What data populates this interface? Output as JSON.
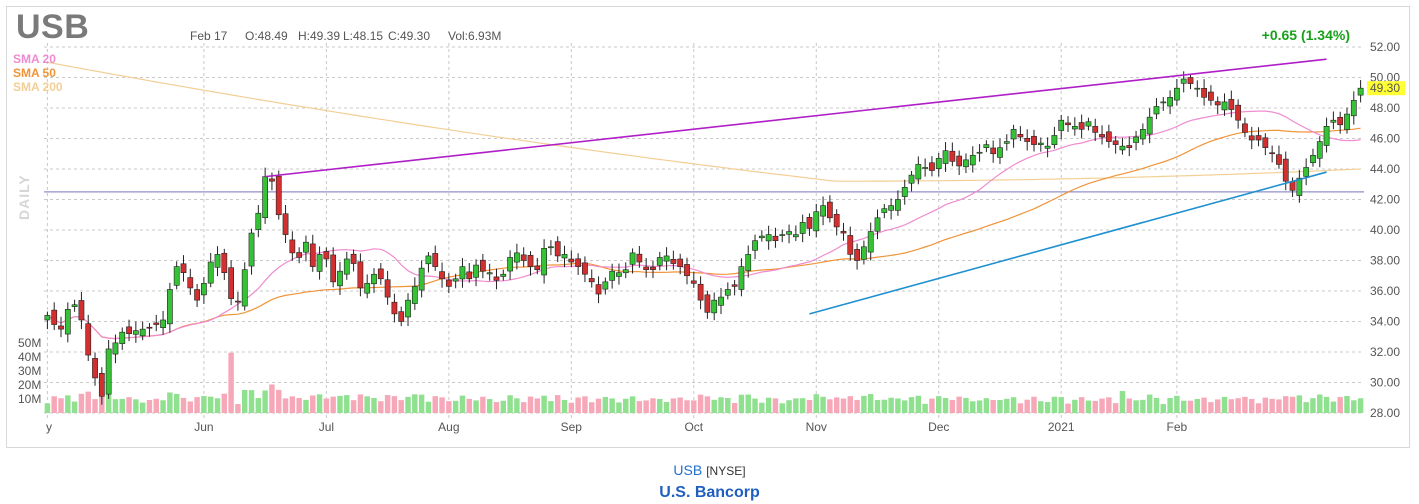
{
  "header": {
    "ticker": "USB",
    "date": "Feb 17",
    "open": "O:48.49",
    "high": "H:49.39",
    "low": "L:48.15",
    "close": "C:49.30",
    "volume": "Vol:6.93M",
    "change": "+0.65 (1.34%)",
    "last_price": "49.30"
  },
  "legend": [
    {
      "label": "SMA 20",
      "color": "#f08bd0"
    },
    {
      "label": "SMA 50",
      "color": "#f0943a"
    },
    {
      "label": "SMA 200",
      "color": "#f2cf95"
    }
  ],
  "side_label": "DAILY",
  "colors": {
    "up": "#36c236",
    "down": "#d23030",
    "vol_up": "#8fe08f",
    "vol_down": "#f7a8b8",
    "resistance": "#b01ec8",
    "support": "#1e90d0",
    "hline": "#9090c8",
    "price_tag": "#ffff33"
  },
  "chart_data": {
    "type": "candlestick",
    "ylim": [
      28,
      52
    ],
    "y_ticks": [
      "52.00",
      "50.00",
      "48.00",
      "46.00",
      "44.00",
      "42.00",
      "40.00",
      "38.00",
      "36.00",
      "34.00",
      "32.00",
      "30.00",
      "28.00"
    ],
    "y_tick_values": [
      52,
      50,
      48,
      46,
      44,
      42,
      40,
      38,
      36,
      34,
      32,
      30,
      28
    ],
    "x_ticks": [
      "y",
      "Jun",
      "Jul",
      "Aug",
      "Sep",
      "Oct",
      "Nov",
      "Dec",
      "2021",
      "Feb"
    ],
    "x_tick_index": [
      0,
      23,
      41,
      59,
      77,
      95,
      113,
      131,
      149,
      166
    ],
    "volume_ticks": [
      "50M",
      "40M",
      "30M",
      "20M",
      "10M"
    ],
    "volume_tick_values": [
      50,
      40,
      30,
      20,
      10
    ],
    "closes": [
      34.4,
      33.8,
      33.5,
      34.8,
      35.1,
      34.1,
      31.8,
      30.3,
      29.1,
      32.2,
      32.6,
      33.3,
      33.2,
      33.4,
      33.5,
      33.6,
      33.8,
      34.1,
      36.1,
      37.6,
      37.2,
      36.2,
      35.4,
      36.5,
      37.9,
      38.4,
      37.2,
      35.5,
      35.3,
      37.4,
      39.8,
      41.1,
      43.5,
      43.2,
      41.0,
      39.7,
      38.5,
      38.2,
      39.2,
      37.6,
      38.4,
      38.1,
      36.6,
      37.3,
      38.1,
      37.8,
      36.2,
      36.5,
      37.1,
      36.8,
      35.6,
      34.5,
      34.0,
      35.4,
      36.3,
      37.5,
      38.3,
      37.6,
      36.8,
      36.3,
      36.8,
      37.6,
      36.8,
      37.7,
      37.3,
      37.2,
      36.7,
      37.1,
      38.2,
      38.5,
      38.0,
      37.6,
      37.4,
      38.8,
      38.9,
      38.3,
      38.4,
      37.9,
      37.6,
      37.1,
      36.6,
      35.8,
      36.6,
      37.3,
      37.2,
      37.4,
      38.5,
      37.9,
      37.4,
      37.4,
      38.2,
      38.3,
      37.8,
      37.6,
      37.0,
      36.5,
      35.4,
      34.6,
      35.4,
      35.6,
      36.1,
      36.3,
      37.6,
      38.4,
      39.3,
      39.6,
      39.7,
      39.3,
      39.7,
      39.9,
      39.7,
      40.5,
      40.1,
      41.2,
      41.6,
      40.8,
      40.2,
      39.8,
      38.4,
      38.0,
      38.9,
      39.9,
      40.8,
      41.4,
      41.6,
      42.0,
      42.8,
      43.6,
      44.3,
      44.1,
      43.9,
      44.7,
      45.2,
      44.5,
      44.2,
      44.6,
      44.9,
      45.1,
      45.6,
      45.0,
      45.4,
      45.8,
      46.6,
      46.1,
      45.8,
      45.6,
      45.7,
      45.5,
      46.2,
      47.2,
      46.9,
      46.8,
      46.6,
      47.1,
      46.4,
      46.1,
      45.8,
      45.6,
      45.5,
      45.4,
      46.1,
      46.6,
      47.4,
      48.1,
      48.4,
      48.7,
      49.3,
      49.9,
      49.6,
      49.3,
      48.7,
      48.5,
      48.2,
      48.4,
      47.9,
      47.2,
      46.4,
      45.9,
      45.9,
      45.4,
      45.0,
      44.3,
      43.2,
      42.6,
      43.4,
      44.1,
      44.9,
      45.8,
      46.8,
      47.2,
      46.9,
      47.6,
      48.5,
      49.3
    ],
    "series": [
      {
        "name": "SMA 20"
      },
      {
        "name": "SMA 50"
      },
      {
        "name": "SMA 200"
      }
    ],
    "horizontal_level": 42.5,
    "trendline_resistance": {
      "start": [
        32,
        43.5
      ],
      "end": [
        188,
        51.2
      ]
    },
    "trendline_support": {
      "start": [
        112,
        34.5
      ],
      "end": [
        188,
        43.8
      ]
    }
  },
  "footer": {
    "symbol": "USB",
    "exchange": "[NYSE]",
    "company": "U.S. Bancorp"
  }
}
